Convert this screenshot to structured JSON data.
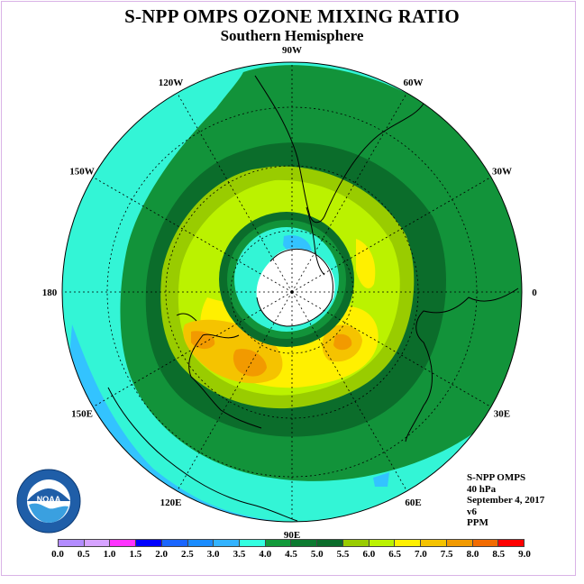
{
  "header": {
    "title": "S-NPP OMPS OZONE MIXING RATIO",
    "subtitle": "Southern Hemisphere"
  },
  "map": {
    "projection": "south-polar-stereographic",
    "longitude_labels": [
      {
        "text": "90W",
        "lon": -90
      },
      {
        "text": "60W",
        "lon": -60
      },
      {
        "text": "30W",
        "lon": -30
      },
      {
        "text": "0",
        "lon": 0
      },
      {
        "text": "30E",
        "lon": 30
      },
      {
        "text": "60E",
        "lon": 60
      },
      {
        "text": "90E",
        "lon": 90
      },
      {
        "text": "120E",
        "lon": 120
      },
      {
        "text": "150E",
        "lon": 150
      },
      {
        "text": "180",
        "lon": 180
      },
      {
        "text": "150W",
        "lon": -150
      },
      {
        "text": "120W",
        "lon": -120
      }
    ],
    "colors": {
      "outer": "#33f5d6",
      "band_45": "#12933a",
      "band_5": "#0b6d2b",
      "band_55": "#99cc00",
      "band_6": "#bbf200",
      "band_65": "#fff000",
      "band_7": "#f5c300",
      "band_75": "#f29a00",
      "low_35": "#33c3ff",
      "pole": "#ffffff"
    }
  },
  "info": {
    "instrument": "S-NPP OMPS",
    "level": "40 hPa",
    "date": "September 4, 2017",
    "version": "v6",
    "units": "PPM"
  },
  "colorbar": {
    "ticks": [
      "0.0",
      "0.5",
      "1.0",
      "1.5",
      "2.0",
      "2.5",
      "3.0",
      "3.5",
      "4.0",
      "4.5",
      "5.0",
      "5.5",
      "6.0",
      "6.5",
      "7.0",
      "7.5",
      "8.0",
      "8.5",
      "9.0"
    ],
    "colors": [
      "#b38cff",
      "#d6a3ff",
      "#ff33ff",
      "#0000ff",
      "#1a66ff",
      "#1a8cff",
      "#33b3ff",
      "#33ffe0",
      "#129a3a",
      "#0c7a30",
      "#0b6d2b",
      "#99cc00",
      "#bbf200",
      "#fff000",
      "#f5c300",
      "#f29a00",
      "#f26b00",
      "#ff0000",
      "#8b4a2b"
    ]
  },
  "logo": {
    "text": "NOAA",
    "ring_text": "NATIONAL OCEANIC AND ATMOSPHERIC ADMINISTRATION"
  }
}
